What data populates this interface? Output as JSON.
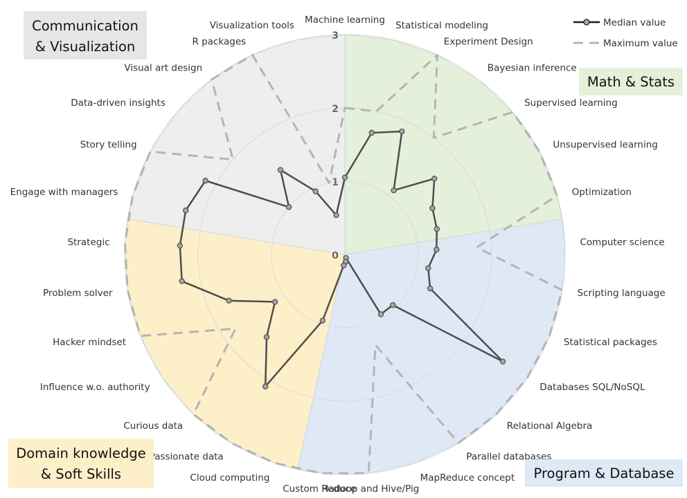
{
  "chart_data": {
    "type": "radar",
    "title": "",
    "r_range": [
      0,
      3
    ],
    "r_ticks": [
      "0",
      "1",
      "2",
      "3"
    ],
    "grid": true,
    "legend_position": "top-right",
    "legend": [
      {
        "label": "Median value",
        "style": "solid-with-markers"
      },
      {
        "label": "Maximum value",
        "style": "dashed"
      }
    ],
    "groups": [
      {
        "label_line1": "Math & Stats",
        "label_line2": "",
        "color": "#e4f0d9",
        "box_color": "#e4f0d9"
      },
      {
        "label_line1": "Program & Database",
        "label_line2": "",
        "color": "#dfe9f5",
        "box_color": "#dfe9f5"
      },
      {
        "label_line1": "Domain knowledge",
        "label_line2": "& Soft Skills",
        "color": "#fdefc8",
        "box_color": "#fdefc8"
      },
      {
        "label_line1": "Communication",
        "label_line2": "& Visualization",
        "color": "#eeeeee",
        "box_color": "#e6e6e6"
      }
    ],
    "categories": [
      "Machine learning",
      "Statistical modeling",
      "Experiment Design",
      "Bayesian inference",
      "Supervised learning",
      "Unsupervised learning",
      "Optimization",
      "Computer science",
      "Scripting language",
      "Statistical packages",
      "Databases SQL/NoSQL",
      "Relational Algebra",
      "Parallel databases",
      "MapReduce concept",
      "Hadoop and Hive/Pig",
      "Custom Reduce",
      "Cloud computing",
      "Passionate data",
      "Curious data",
      "Influence w.o. authority",
      "Hacker mindset",
      "Problem solver",
      "Strategic",
      "Engage with managers",
      "Story telling",
      "Data-driven insights",
      "Visual art design",
      "R packages",
      "Visualization tools"
    ],
    "series": [
      {
        "name": "Median value",
        "color": "#4d4d4d",
        "values": [
          1.05,
          1.7,
          1.85,
          1.1,
          1.6,
          1.35,
          1.3,
          1.25,
          1.15,
          1.25,
          2.6,
          0.95,
          0.95,
          0.05,
          0.1,
          0.15,
          0.95,
          2.1,
          1.55,
          1.15,
          1.7,
          2.25,
          2.25,
          2.25,
          2.15,
          1.0,
          1.45,
          0.95,
          0.55
        ]
      },
      {
        "name": "Maximum value",
        "color": "#b4b4b4",
        "values": [
          2.0,
          2.0,
          3.0,
          2.0,
          3.0,
          3.0,
          3.0,
          1.8,
          3.0,
          3.0,
          3.0,
          3.0,
          3.0,
          1.3,
          3.0,
          3.0,
          3.0,
          3.0,
          3.0,
          1.8,
          3.0,
          3.0,
          3.0,
          3.0,
          3.0,
          2.0,
          3.0,
          3.0,
          1.0
        ]
      }
    ]
  }
}
